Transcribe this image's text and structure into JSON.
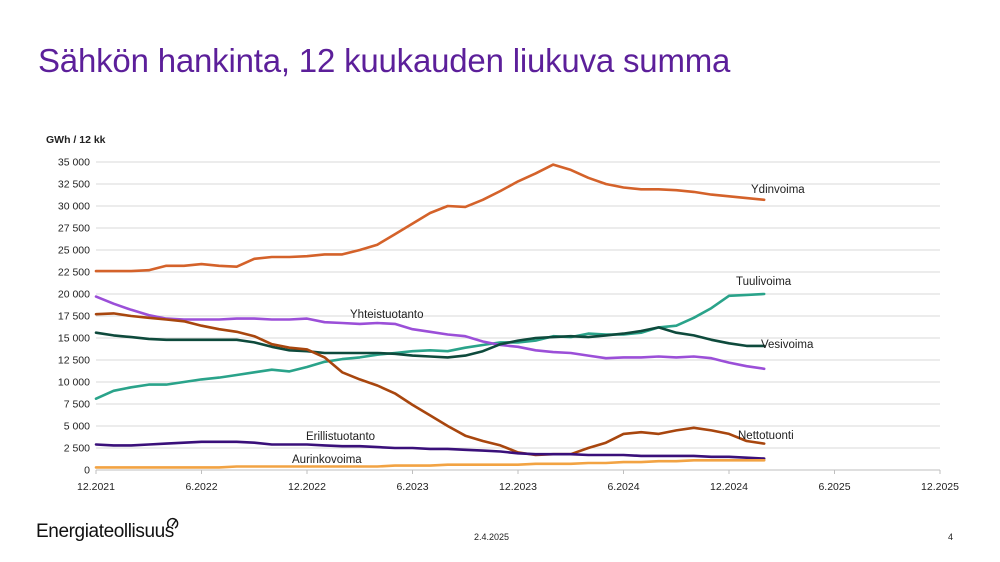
{
  "slide": {
    "title": "Sähkön hankinta, 12 kuukauden liukuva summa",
    "brand": "Energiateollisuus",
    "date": "2.4.2025",
    "page": "4"
  },
  "chart_data": {
    "type": "line",
    "ylabel": "GWh / 12 kk",
    "ylim": [
      0,
      35000
    ],
    "yticks": [
      0,
      2500,
      5000,
      7500,
      10000,
      12500,
      15000,
      17500,
      20000,
      22500,
      25000,
      27500,
      30000,
      32500,
      35000
    ],
    "ytick_labels": [
      "0",
      "2 500",
      "5 000",
      "7 500",
      "10 000",
      "12 500",
      "15 000",
      "17 500",
      "20 000",
      "22 500",
      "25 000",
      "27 500",
      "30 000",
      "32 500",
      "35 000"
    ],
    "xtick_labels": [
      "12.2021",
      "6.2022",
      "12.2022",
      "6.2023",
      "12.2023",
      "6.2024",
      "12.2024",
      "6.2025",
      "12.2025"
    ],
    "x": [
      "12.2021",
      "1.2022",
      "2.2022",
      "3.2022",
      "4.2022",
      "5.2022",
      "6.2022",
      "7.2022",
      "8.2022",
      "9.2022",
      "10.2022",
      "11.2022",
      "12.2022",
      "1.2023",
      "2.2023",
      "3.2023",
      "4.2023",
      "5.2023",
      "6.2023",
      "7.2023",
      "8.2023",
      "9.2023",
      "10.2023",
      "11.2023",
      "12.2023",
      "1.2024",
      "2.2024",
      "3.2024",
      "4.2024",
      "5.2024",
      "6.2024",
      "7.2024",
      "8.2024",
      "9.2024",
      "10.2024",
      "11.2024",
      "12.2024",
      "1.2025",
      "2.2025"
    ],
    "grid": true,
    "legend": "inline labels",
    "series": [
      {
        "name": "Ydinvoima",
        "color": "#d4622a",
        "values": [
          22600,
          22600,
          22600,
          22700,
          23200,
          23200,
          23400,
          23200,
          23100,
          24000,
          24200,
          24200,
          24300,
          24500,
          24500,
          25000,
          25600,
          26800,
          28000,
          29200,
          30000,
          29900,
          30700,
          31700,
          32800,
          33700,
          34700,
          34100,
          33200,
          32500,
          32100,
          31900,
          31900,
          31800,
          31600,
          31300,
          31100,
          30900,
          30700
        ]
      },
      {
        "name": "Tuulivoima",
        "color": "#2aa38a",
        "values": [
          8100,
          9000,
          9400,
          9700,
          9700,
          10000,
          10300,
          10500,
          10800,
          11100,
          11400,
          11200,
          11700,
          12300,
          12600,
          12800,
          13100,
          13300,
          13500,
          13600,
          13500,
          13900,
          14200,
          14500,
          14500,
          14700,
          15200,
          15100,
          15500,
          15400,
          15400,
          15600,
          16200,
          16400,
          17300,
          18400,
          19800,
          19900,
          20000
        ]
      },
      {
        "name": "Yhteistuotanto",
        "color": "#9b4fd8",
        "values": [
          19700,
          18900,
          18200,
          17600,
          17200,
          17100,
          17100,
          17100,
          17200,
          17200,
          17100,
          17100,
          17200,
          16800,
          16700,
          16600,
          16700,
          16600,
          16000,
          15700,
          15400,
          15200,
          14600,
          14200,
          14000,
          13600,
          13400,
          13300,
          13000,
          12700,
          12800,
          12800,
          12900,
          12800,
          12900,
          12700,
          12200,
          11800,
          11500
        ]
      },
      {
        "name": "Vesivoima",
        "color": "#0e4a3c",
        "values": [
          15600,
          15300,
          15100,
          14900,
          14800,
          14800,
          14800,
          14800,
          14800,
          14500,
          14000,
          13600,
          13500,
          13300,
          13300,
          13300,
          13300,
          13200,
          13000,
          12900,
          12800,
          13000,
          13500,
          14300,
          14700,
          15000,
          15100,
          15200,
          15100,
          15300,
          15500,
          15800,
          16200,
          15600,
          15300,
          14800,
          14400,
          14100,
          14100
        ]
      },
      {
        "name": "Nettotuonti",
        "color": "#a8460e",
        "values": [
          17700,
          17800,
          17500,
          17300,
          17100,
          16900,
          16400,
          16000,
          15700,
          15200,
          14300,
          13900,
          13700,
          12800,
          11100,
          10300,
          9600,
          8700,
          7400,
          6200,
          5000,
          3900,
          3300,
          2800,
          2000,
          1700,
          1800,
          1800,
          2500,
          3100,
          4100,
          4300,
          4100,
          4500,
          4800,
          4500,
          4100,
          3300,
          3000
        ]
      },
      {
        "name": "Erillistuotanto",
        "color": "#3a107a",
        "values": [
          2900,
          2800,
          2800,
          2900,
          3000,
          3100,
          3200,
          3200,
          3200,
          3100,
          2900,
          2900,
          2900,
          2800,
          2700,
          2700,
          2600,
          2500,
          2500,
          2400,
          2400,
          2300,
          2200,
          2100,
          1900,
          1800,
          1800,
          1800,
          1700,
          1700,
          1700,
          1600,
          1600,
          1600,
          1600,
          1500,
          1500,
          1400,
          1300
        ]
      },
      {
        "name": "Aurinkovoima",
        "color": "#f2a343",
        "values": [
          300,
          300,
          300,
          300,
          300,
          300,
          300,
          300,
          400,
          400,
          400,
          400,
          400,
          400,
          400,
          400,
          400,
          500,
          500,
          500,
          600,
          600,
          600,
          600,
          600,
          700,
          700,
          700,
          800,
          800,
          900,
          900,
          1000,
          1000,
          1100,
          1100,
          1100,
          1100,
          1100
        ]
      }
    ]
  },
  "style": {
    "title_color": "#5c1f9a",
    "gridline_color": "#d9d9d9",
    "axis_color": "#bfbfbf",
    "text_color": "#222222"
  }
}
